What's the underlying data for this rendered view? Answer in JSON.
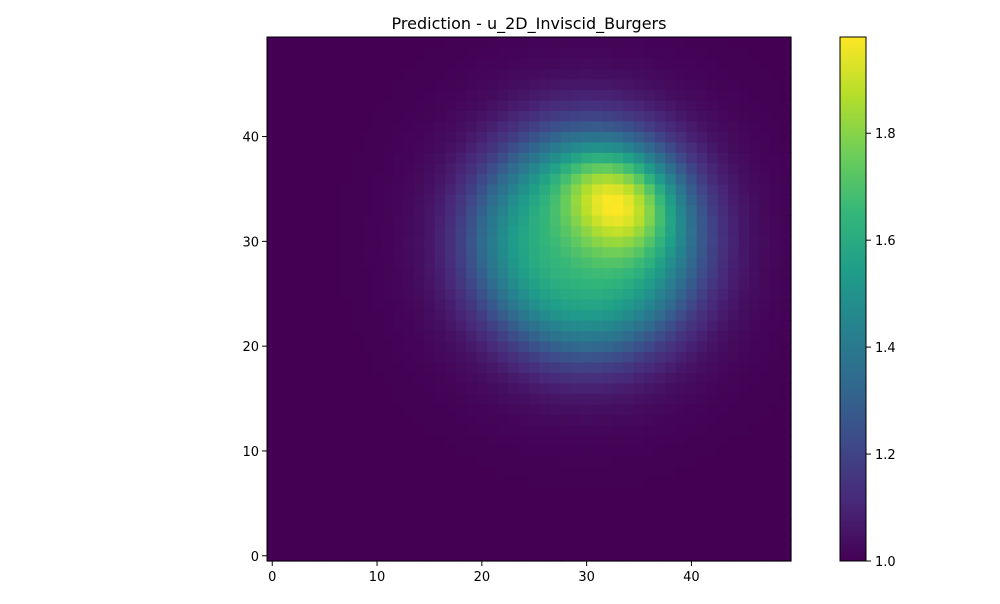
{
  "chart_data": {
    "type": "heatmap",
    "title": "Prediction - u_2D_Inviscid_Burgers",
    "xlabel": "",
    "ylabel": "",
    "grid": false,
    "colormap": "viridis",
    "origin": "lower",
    "shape": [
      50,
      50
    ],
    "xlim": [
      -0.5,
      49.5
    ],
    "ylim": [
      -0.5,
      49.5
    ],
    "xticks": [
      0,
      10,
      20,
      30,
      40
    ],
    "yticks": [
      0,
      10,
      20,
      30,
      40
    ],
    "colorbar": {
      "vmin": 1.0,
      "vmax": 1.98,
      "ticks": [
        1.0,
        1.2,
        1.4,
        1.6,
        1.8
      ],
      "tick_labels": [
        "1.0",
        "1.2",
        "1.4",
        "1.6",
        "1.8"
      ]
    },
    "field": {
      "baseline": 1.0,
      "blobs": [
        {
          "center": [
            30,
            30
          ],
          "radius": 10,
          "edge_width": 2.2,
          "amplitude": 0.55
        },
        {
          "center": [
            33.5,
            33.5
          ],
          "sigma": 3.2,
          "amplitude": 0.28
        },
        {
          "center": [
            30,
            35.5
          ],
          "sigma": 2.5,
          "amplitude": 0.08
        }
      ],
      "max_value": 1.98
    }
  }
}
